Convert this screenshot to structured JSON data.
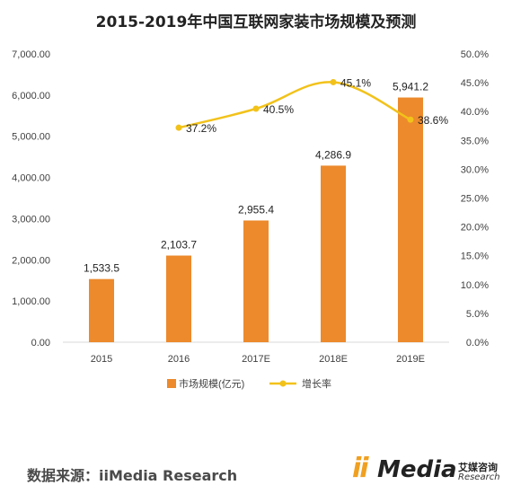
{
  "title": "2015-2019年中国互联网家装市场规模及预测",
  "source_text": "数据来源：iiMedia Research",
  "logo": {
    "mark": "ii",
    "name": "Media",
    "cn": "艾媒咨询",
    "en": "Research"
  },
  "colors": {
    "bar": "#ec8a2c",
    "line": "#f2c21a",
    "axis": "#d9d9d9",
    "text": "#404040"
  },
  "chart_data": {
    "type": "bar",
    "categories": [
      "2015",
      "2016",
      "2017E",
      "2018E",
      "2019E"
    ],
    "series": [
      {
        "name": "市场规模(亿元)",
        "type": "bar",
        "axis": "left",
        "values": [
          1533.5,
          2103.7,
          2955.4,
          4286.9,
          5941.2
        ],
        "labels": [
          "1,533.5",
          "2,103.7",
          "2,955.4",
          "4,286.9",
          "5,941.2"
        ]
      },
      {
        "name": "增长率",
        "type": "line",
        "axis": "right",
        "values": [
          null,
          37.2,
          40.5,
          45.1,
          38.6
        ],
        "labels": [
          "",
          "37.2%",
          "40.5%",
          "45.1%",
          "38.6%"
        ]
      }
    ],
    "y_left": {
      "min": 0,
      "max": 7000,
      "ticks": [
        "0.00",
        "1,000.00",
        "2,000.00",
        "3,000.00",
        "4,000.00",
        "5,000.00",
        "6,000.00",
        "7,000.00"
      ]
    },
    "y_right": {
      "min": 0,
      "max": 50,
      "ticks": [
        "0.0%",
        "5.0%",
        "10.0%",
        "15.0%",
        "20.0%",
        "25.0%",
        "30.0%",
        "35.0%",
        "40.0%",
        "45.0%",
        "50.0%"
      ]
    },
    "legend_position": "bottom",
    "grid": false
  }
}
